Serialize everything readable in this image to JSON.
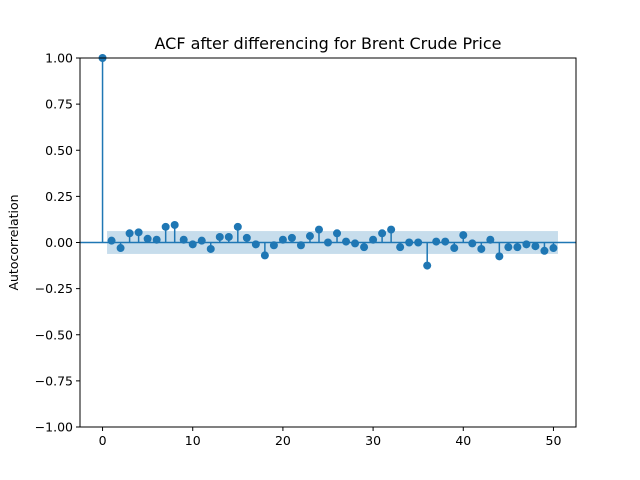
{
  "chart_data": {
    "type": "stem",
    "title": "ACF after differencing for Brent Crude Price",
    "xlabel": "",
    "ylabel": "Autocorrelation",
    "xlim": [
      -2.5,
      52.5
    ],
    "ylim": [
      -1.0,
      1.0
    ],
    "xticks": [
      0,
      10,
      20,
      30,
      40,
      50
    ],
    "yticks": [
      -1.0,
      -0.75,
      -0.5,
      -0.25,
      0.0,
      0.25,
      0.5,
      0.75,
      1.0
    ],
    "xtick_labels": [
      "0",
      "10",
      "20",
      "30",
      "40",
      "50"
    ],
    "ytick_labels": [
      "−1.00",
      "−0.75",
      "−0.50",
      "−0.25",
      "0.00",
      "0.25",
      "0.50",
      "0.75",
      "1.00"
    ],
    "grid": false,
    "color": "#1f77b4",
    "confidence_band": {
      "color": "#1f77b4",
      "opacity": 0.25,
      "from_lag": 0.5,
      "to_lag": 50.5,
      "lower": -0.062,
      "upper": 0.062
    },
    "lags": [
      0,
      1,
      2,
      3,
      4,
      5,
      6,
      7,
      8,
      9,
      10,
      11,
      12,
      13,
      14,
      15,
      16,
      17,
      18,
      19,
      20,
      21,
      22,
      23,
      24,
      25,
      26,
      27,
      28,
      29,
      30,
      31,
      32,
      33,
      34,
      35,
      36,
      37,
      38,
      39,
      40,
      41,
      42,
      43,
      44,
      45,
      46,
      47,
      48,
      49,
      50
    ],
    "values": [
      1.0,
      0.01,
      -0.03,
      0.05,
      0.055,
      0.02,
      0.015,
      0.085,
      0.095,
      0.015,
      -0.01,
      0.01,
      -0.035,
      0.03,
      0.03,
      0.085,
      0.025,
      -0.01,
      -0.07,
      -0.015,
      0.015,
      0.025,
      -0.015,
      0.035,
      0.07,
      0.0,
      0.05,
      0.005,
      -0.005,
      -0.025,
      0.015,
      0.05,
      0.07,
      -0.025,
      0.0,
      0.0,
      -0.125,
      0.005,
      0.005,
      -0.03,
      0.04,
      -0.005,
      -0.035,
      0.015,
      -0.075,
      -0.025,
      -0.025,
      -0.01,
      -0.02,
      -0.045,
      -0.03
    ]
  }
}
